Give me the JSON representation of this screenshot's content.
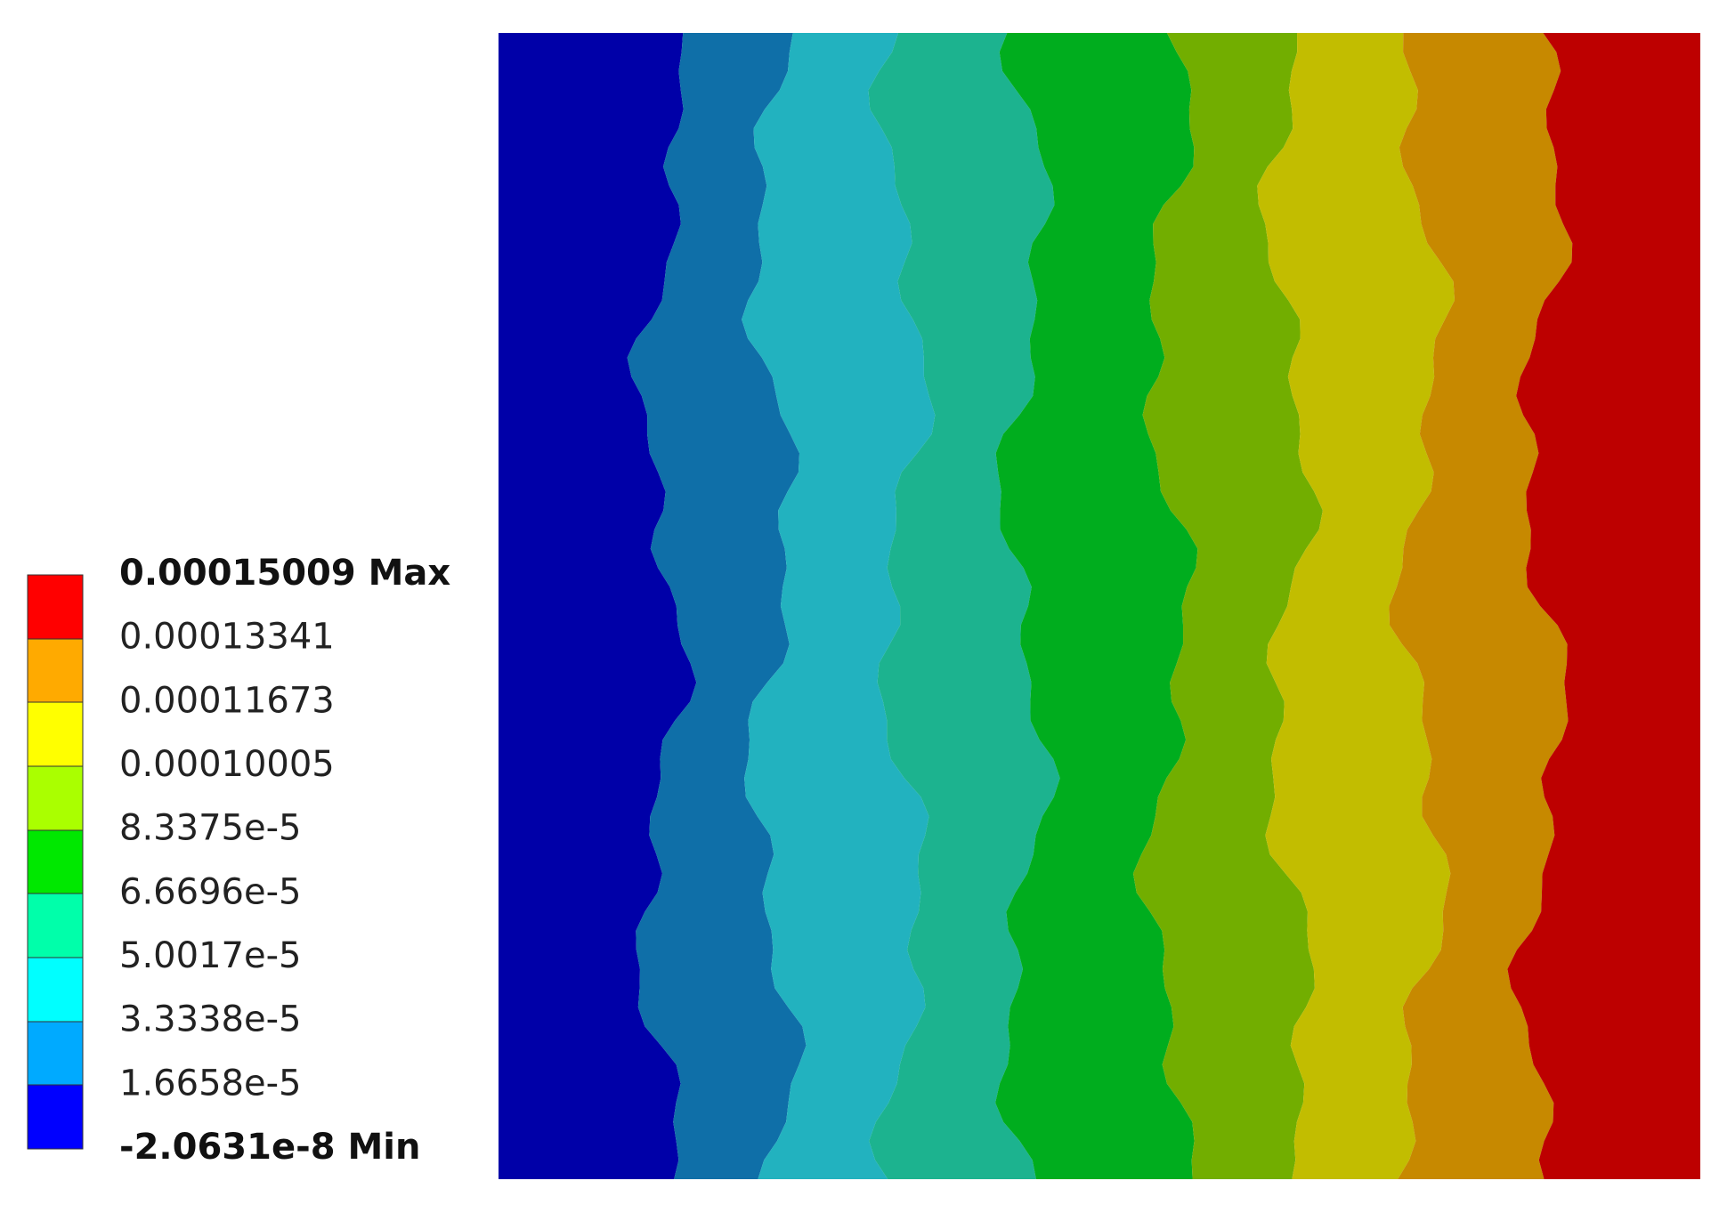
{
  "legend": {
    "labels": [
      "0.00015009 Max",
      "0.00013341",
      "0.00011673",
      "0.00010005",
      "8.3375e-5",
      "6.6696e-5",
      "5.0017e-5",
      "3.3338e-5",
      "1.6658e-5",
      "-2.0631e-8 Min"
    ]
  }
}
